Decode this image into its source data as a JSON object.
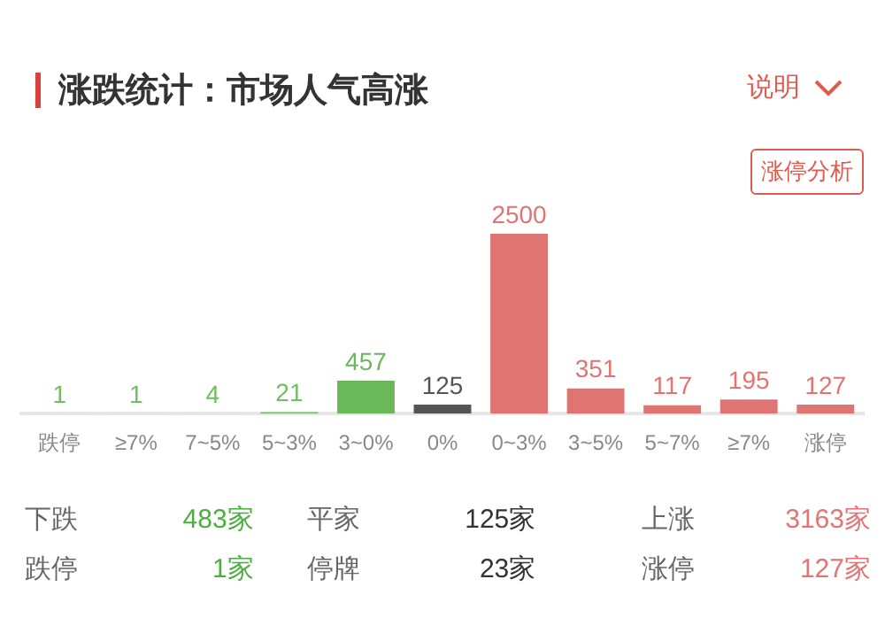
{
  "chart_data": {
    "type": "bar",
    "title": "涨跌统计：市场人气高涨",
    "categories": [
      "跌停",
      "≥7%",
      "7~5%",
      "5~3%",
      "3~0%",
      "0%",
      "0~3%",
      "3~5%",
      "5~7%",
      "≥7%",
      "涨停"
    ],
    "values": [
      1,
      1,
      4,
      21,
      457,
      125,
      2500,
      351,
      117,
      195,
      127
    ],
    "colors": [
      "#72bf63",
      "#72bf63",
      "#72bf63",
      "#72bf63",
      "#6ab85a",
      "#555555",
      "#e07472",
      "#e07472",
      "#e07472",
      "#e07472",
      "#e07472"
    ],
    "data_labels": true,
    "grid": false,
    "legend": false,
    "annotations": [
      "说明",
      "涨停分析",
      "下跌",
      "483家",
      "平家",
      "125家",
      "上涨",
      "3163家",
      "跌停",
      "1家",
      "停牌",
      "23家",
      "涨停",
      "127家"
    ]
  }
}
